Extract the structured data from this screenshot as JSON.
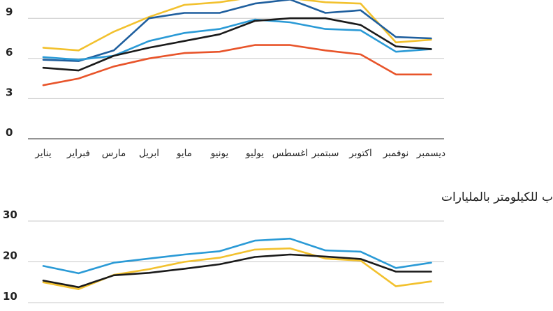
{
  "chart_data": [
    {
      "type": "line",
      "title": "",
      "categories": [
        "يناير",
        "فبراير",
        "مارس",
        "ابريل",
        "مايو",
        "يونيو",
        "يوليو",
        "اغسطس",
        "سبتمبر",
        "اكتوبر",
        "نوفمبر",
        "ديسمبر"
      ],
      "yticks": [
        0,
        3,
        6,
        9
      ],
      "ylim": [
        0,
        10.5
      ],
      "grid": true,
      "series": [
        {
          "color": "#f2c12e",
          "values": [
            6.8,
            6.6,
            8.0,
            9.1,
            10.0,
            10.2,
            10.6,
            10.5,
            10.2,
            10.1,
            7.2,
            7.4
          ]
        },
        {
          "color": "#1f5f9e",
          "values": [
            5.9,
            5.8,
            6.6,
            9.0,
            9.4,
            9.4,
            10.1,
            10.4,
            9.4,
            9.6,
            7.6,
            7.5
          ]
        },
        {
          "color": "#2a9ad6",
          "values": [
            6.1,
            5.9,
            6.2,
            7.3,
            7.9,
            8.2,
            8.9,
            8.7,
            8.2,
            8.1,
            6.5,
            6.7
          ]
        },
        {
          "color": "#1a1a1a",
          "values": [
            5.3,
            5.1,
            6.2,
            6.8,
            7.3,
            7.8,
            8.8,
            9.0,
            9.0,
            8.5,
            6.9,
            6.7
          ]
        },
        {
          "color": "#e8542a",
          "values": [
            4.0,
            4.5,
            5.4,
            6.0,
            6.4,
            6.5,
            7.0,
            7.0,
            6.6,
            6.3,
            4.8,
            4.8
          ]
        }
      ]
    },
    {
      "type": "line",
      "title": "الإيرادات الشهرية للركاب للكيلومتر بالمليارات",
      "yticks": [
        10,
        20,
        30
      ],
      "ylim": [
        10,
        30
      ],
      "grid": true,
      "series": [
        {
          "color": "#2a9ad6",
          "values": [
            19.0,
            17.2,
            19.8,
            20.8,
            21.8,
            22.6,
            25.2,
            25.7,
            22.8,
            22.5,
            18.5,
            19.8
          ]
        },
        {
          "color": "#f2c12e",
          "values": [
            15.0,
            13.3,
            16.8,
            18.2,
            20.0,
            21.0,
            23.0,
            23.3,
            20.8,
            20.3,
            14.0,
            15.2
          ]
        },
        {
          "color": "#1a1a1a",
          "values": [
            15.4,
            13.8,
            16.7,
            17.3,
            18.3,
            19.4,
            21.2,
            21.8,
            21.3,
            20.7,
            17.6,
            17.6
          ]
        }
      ]
    }
  ]
}
